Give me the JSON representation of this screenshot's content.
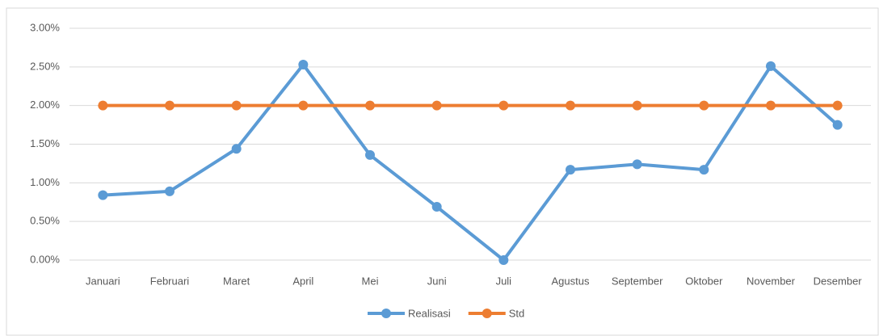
{
  "chart_data": {
    "type": "line",
    "categories": [
      "Januari",
      "Februari",
      "Maret",
      "April",
      "Mei",
      "Juni",
      "Juli",
      "Agustus",
      "September",
      "Oktober",
      "November",
      "Desember"
    ],
    "series": [
      {
        "name": "Realisasi",
        "color": "#5b9bd5",
        "values": [
          0.84,
          0.89,
          1.44,
          2.53,
          1.36,
          0.69,
          0.0,
          1.17,
          1.24,
          1.17,
          2.51,
          1.75
        ]
      },
      {
        "name": "Std",
        "color": "#ed7d31",
        "values": [
          2.0,
          2.0,
          2.0,
          2.0,
          2.0,
          2.0,
          2.0,
          2.0,
          2.0,
          2.0,
          2.0,
          2.0
        ]
      }
    ],
    "ylim": [
      0,
      3
    ],
    "yticks": [
      {
        "value": 0,
        "label": "0.00%"
      },
      {
        "value": 0.5,
        "label": "0.50%"
      },
      {
        "value": 1,
        "label": "1.00%"
      },
      {
        "value": 1.5,
        "label": "1.50%"
      },
      {
        "value": 2,
        "label": "2.00%"
      },
      {
        "value": 2.5,
        "label": "2.50%"
      },
      {
        "value": 3,
        "label": "3.00%"
      }
    ],
    "grid": true,
    "legend": "bottom"
  }
}
